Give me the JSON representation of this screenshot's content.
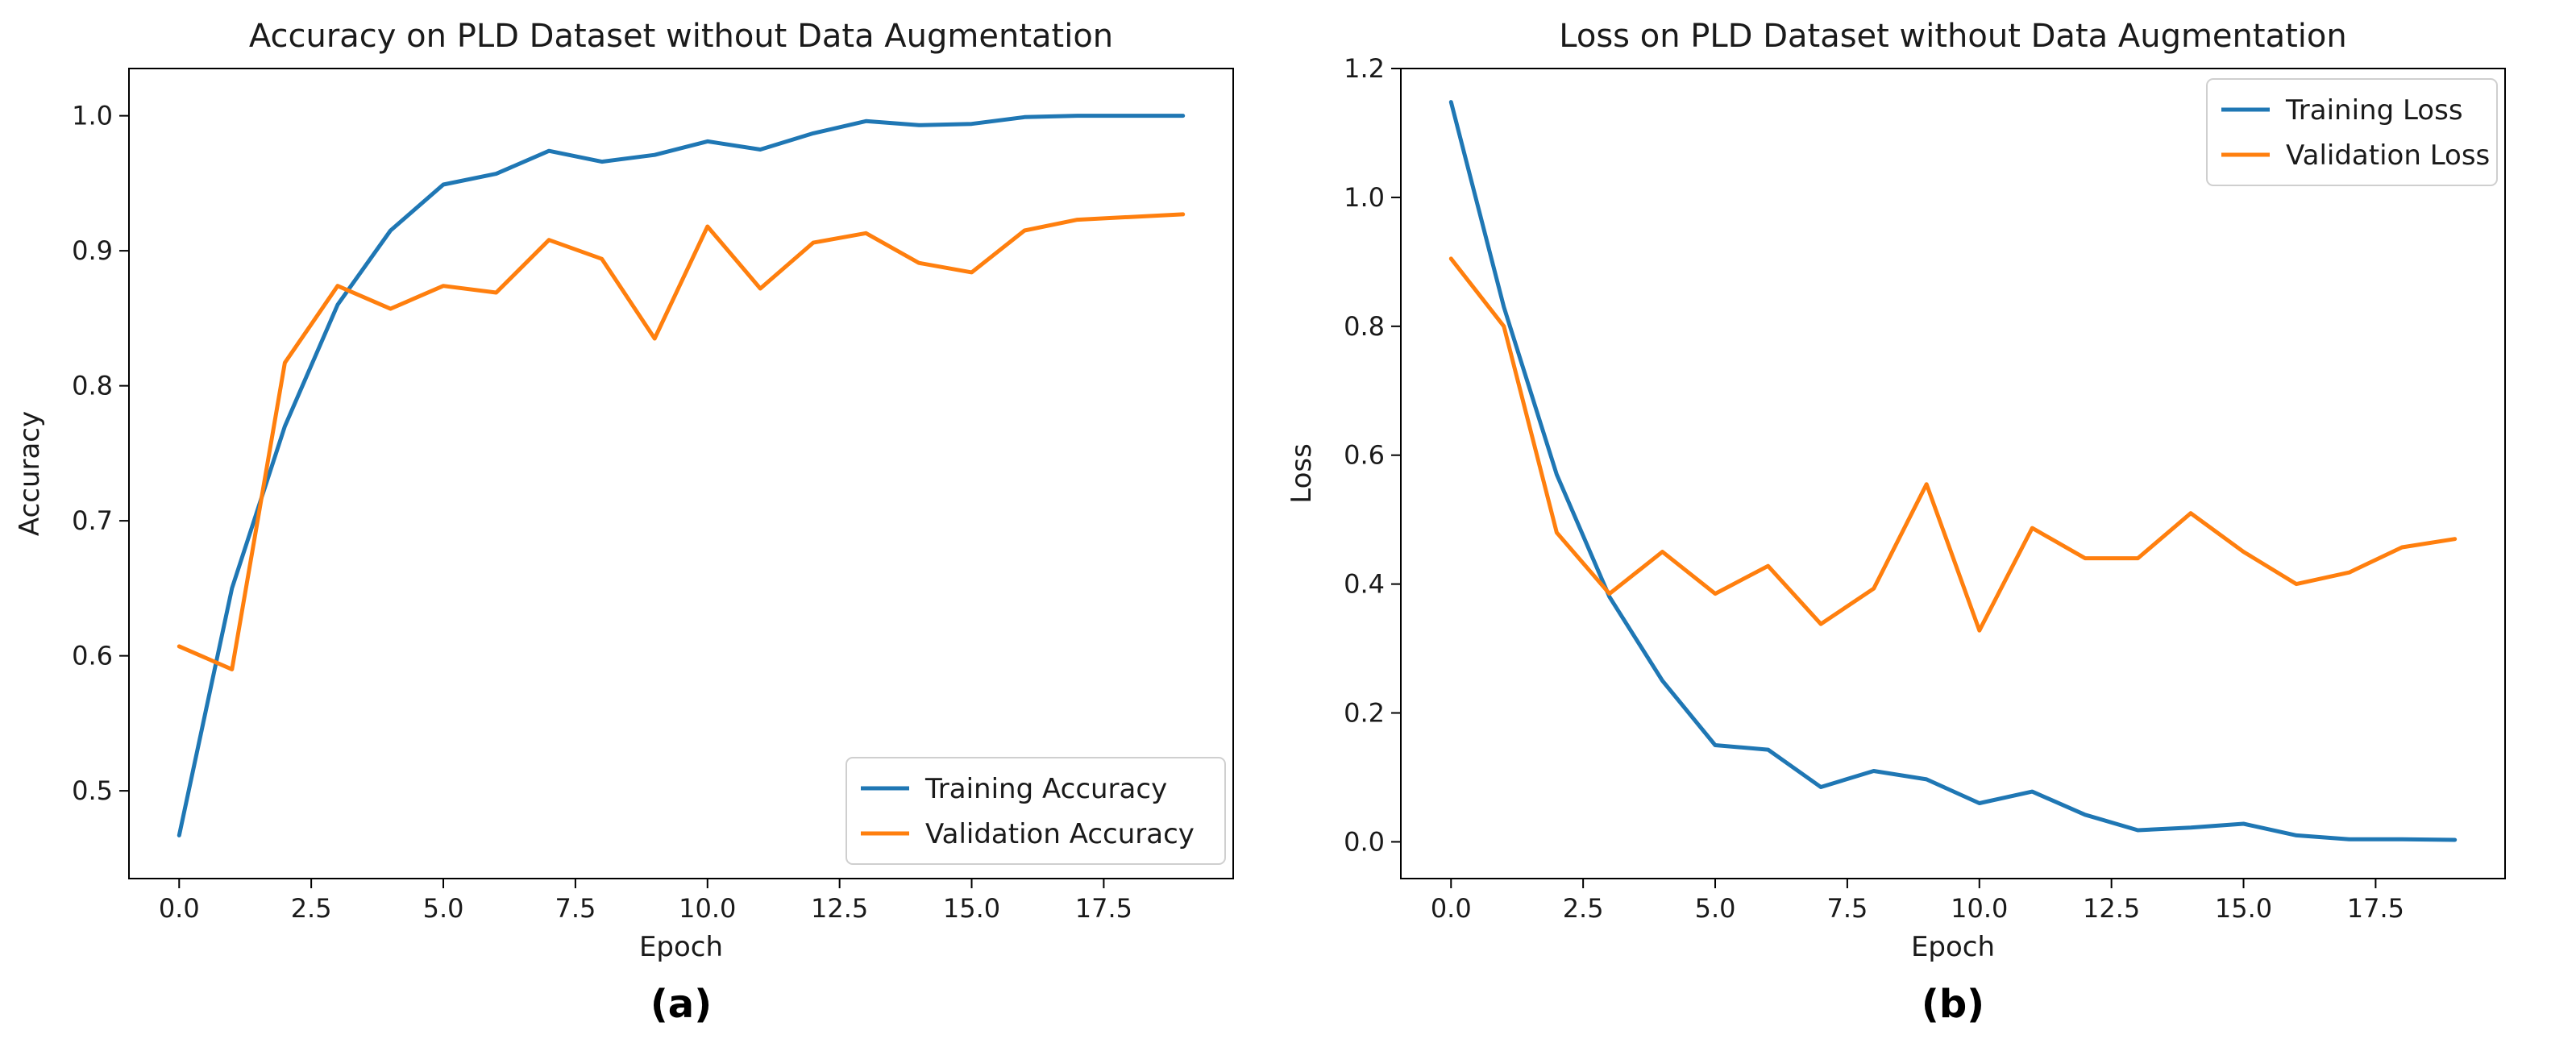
{
  "chart_data": [
    {
      "type": "line",
      "panel_label": "(a)",
      "title": "Accuracy on PLD Dataset without Data Augmentation",
      "xlabel": "Epoch",
      "ylabel": "Accuracy",
      "xlim": [
        -0.95,
        19.95
      ],
      "ylim": [
        0.435,
        1.035
      ],
      "xticks": [
        0.0,
        2.5,
        5.0,
        7.5,
        10.0,
        12.5,
        15.0,
        17.5
      ],
      "xtick_labels": [
        "0.0",
        "2.5",
        "5.0",
        "7.5",
        "10.0",
        "12.5",
        "15.0",
        "17.5"
      ],
      "yticks": [
        0.5,
        0.6,
        0.7,
        0.8,
        0.9,
        1.0
      ],
      "ytick_labels": [
        "0.5",
        "0.6",
        "0.7",
        "0.8",
        "0.9",
        "1.0"
      ],
      "legend_position": "lower-right",
      "x": [
        0,
        1,
        2,
        3,
        4,
        5,
        6,
        7,
        8,
        9,
        10,
        11,
        12,
        13,
        14,
        15,
        16,
        17,
        18,
        19
      ],
      "series": [
        {
          "name": "Training Accuracy",
          "color": "#1f77b4",
          "values": [
            0.467,
            0.65,
            0.77,
            0.86,
            0.915,
            0.949,
            0.957,
            0.974,
            0.966,
            0.971,
            0.981,
            0.975,
            0.987,
            0.996,
            0.993,
            0.994,
            0.999,
            1.0,
            1.0,
            1.0
          ]
        },
        {
          "name": "Validation Accuracy",
          "color": "#ff7f0e",
          "values": [
            0.607,
            0.59,
            0.817,
            0.874,
            0.857,
            0.874,
            0.869,
            0.908,
            0.894,
            0.835,
            0.918,
            0.872,
            0.906,
            0.913,
            0.891,
            0.884,
            0.915,
            0.923,
            0.925,
            0.927
          ]
        }
      ]
    },
    {
      "type": "line",
      "panel_label": "(b)",
      "title": "Loss on PLD Dataset without Data Augmentation",
      "xlabel": "Epoch",
      "ylabel": "Loss",
      "xlim": [
        -0.95,
        19.95
      ],
      "ylim": [
        -0.057,
        1.2
      ],
      "xticks": [
        0.0,
        2.5,
        5.0,
        7.5,
        10.0,
        12.5,
        15.0,
        17.5
      ],
      "xtick_labels": [
        "0.0",
        "2.5",
        "5.0",
        "7.5",
        "10.0",
        "12.5",
        "15.0",
        "17.5"
      ],
      "yticks": [
        0.0,
        0.2,
        0.4,
        0.6,
        0.8,
        1.0,
        1.2
      ],
      "ytick_labels": [
        "0.0",
        "0.2",
        "0.4",
        "0.6",
        "0.8",
        "1.0",
        "1.2"
      ],
      "legend_position": "upper-right",
      "x": [
        0,
        1,
        2,
        3,
        4,
        5,
        6,
        7,
        8,
        9,
        10,
        11,
        12,
        13,
        14,
        15,
        16,
        17,
        18,
        19
      ],
      "series": [
        {
          "name": "Training Loss",
          "color": "#1f77b4",
          "values": [
            1.148,
            0.83,
            0.57,
            0.38,
            0.25,
            0.15,
            0.143,
            0.085,
            0.11,
            0.097,
            0.06,
            0.078,
            0.042,
            0.018,
            0.022,
            0.028,
            0.01,
            0.004,
            0.004,
            0.003
          ]
        },
        {
          "name": "Validation Loss",
          "color": "#ff7f0e",
          "values": [
            0.905,
            0.8,
            0.48,
            0.385,
            0.45,
            0.385,
            0.428,
            0.338,
            0.393,
            0.555,
            0.328,
            0.487,
            0.44,
            0.44,
            0.51,
            0.45,
            0.4,
            0.418,
            0.457,
            0.47
          ]
        }
      ]
    }
  ]
}
